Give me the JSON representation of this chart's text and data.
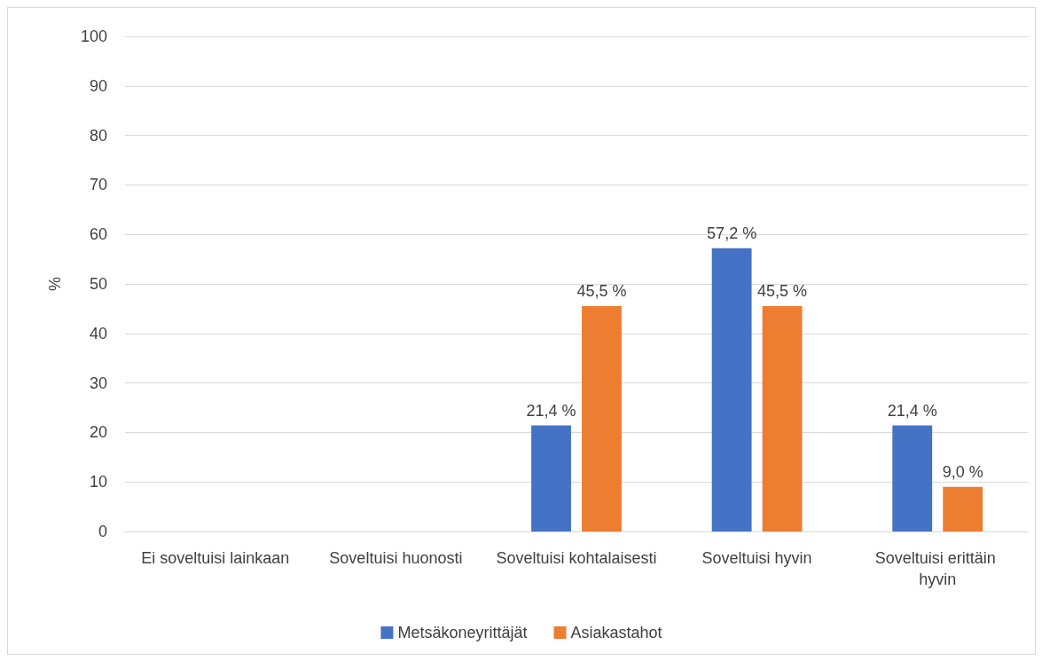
{
  "chart_data": {
    "type": "bar",
    "ylabel": "%",
    "categories": [
      "Ei soveltuisi lainkaan",
      "Soveltuisi huonosti",
      "Soveltuisi kohtalaisesti",
      "Soveltuisi hyvin",
      "Soveltuisi erittäin hyvin"
    ],
    "series": [
      {
        "name": "Metsäkoneyrittäjät",
        "color": "#4472c4",
        "values": [
          null,
          null,
          21.4,
          57.2,
          21.4
        ],
        "value_labels": [
          null,
          null,
          "21,4 %",
          "57,2 %",
          "21,4 %"
        ]
      },
      {
        "name": "Asiakastahot",
        "color": "#ed7d31",
        "values": [
          null,
          null,
          45.5,
          45.5,
          9.0
        ],
        "value_labels": [
          null,
          null,
          "45,5 %",
          "45,5 %",
          "9,0 %"
        ]
      }
    ],
    "ylim": [
      0,
      100
    ],
    "yticks": [
      0,
      10,
      20,
      30,
      40,
      50,
      60,
      70,
      80,
      90,
      100
    ],
    "grid": "y",
    "legend": "bottom"
  }
}
